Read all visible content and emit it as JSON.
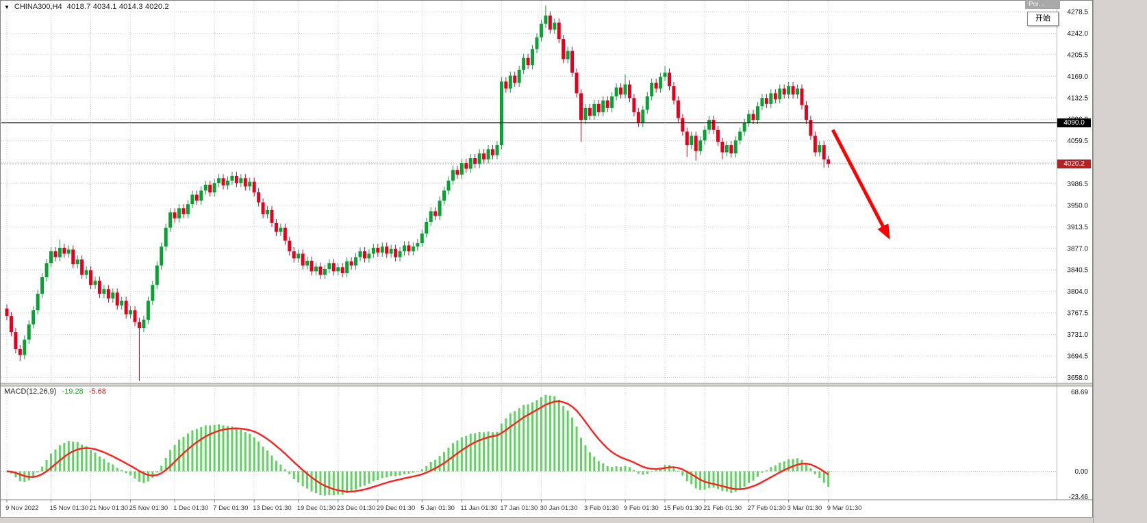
{
  "header": {
    "symbol_timeframe": "CHINA300,H4",
    "ohlc_text": "4018.7 4034.1 4014.3 4020.2"
  },
  "icons": {
    "symbol_dropdown": "▼"
  },
  "overlay": {
    "popup_text": "Poi...",
    "start_button_label": "开始"
  },
  "macd": {
    "label": "MACD(12,26,9)",
    "main_value": "-19.28",
    "signal_value": "-5.68",
    "axis_labels": {
      "max": "68.69",
      "zero": "0.00",
      "min": "-23.46"
    }
  },
  "price_axis": {
    "top_price": 4278.5,
    "step": 36.5,
    "labels": [
      "4278.5",
      "4242.0",
      "4205.5",
      "4169.0",
      "4132.5",
      "4096.0",
      "4059.5",
      "4023.0",
      "3986.5",
      "3950.0",
      "3913.5",
      "3877.0",
      "3840.5",
      "3804.0",
      "3767.5",
      "3731.0",
      "3694.5",
      "3658.0"
    ]
  },
  "time_axis": {
    "ticks": [
      {
        "label": "9 Nov 2022",
        "index": 0
      },
      {
        "label": "15 Nov 01:30",
        "index": 10
      },
      {
        "label": "21 Nov 01:30",
        "index": 19
      },
      {
        "label": "25 Nov 01:30",
        "index": 28
      },
      {
        "label": "1 Dec 01:30",
        "index": 38
      },
      {
        "label": "7 Dec 01:30",
        "index": 47
      },
      {
        "label": "13 Dec 01:30",
        "index": 56
      },
      {
        "label": "19 Dec 01:30",
        "index": 66
      },
      {
        "label": "23 Dec 01:30",
        "index": 75
      },
      {
        "label": "29 Dec 01:30",
        "index": 84
      },
      {
        "label": "5 Jan 01:30",
        "index": 94
      },
      {
        "label": "11 Jan 01:30",
        "index": 103
      },
      {
        "label": "17 Jan 01:30",
        "index": 112
      },
      {
        "label": "30 Jan 01:30",
        "index": 121
      },
      {
        "label": "3 Feb 01:30",
        "index": 131
      },
      {
        "label": "9 Feb 01:30",
        "index": 140
      },
      {
        "label": "15 Feb 01:30",
        "index": 149
      },
      {
        "label": "21 Feb 01:30",
        "index": 158
      },
      {
        "label": "27 Feb 01:30",
        "index": 168
      },
      {
        "label": "3 Mar 01:30",
        "index": 177
      },
      {
        "label": "9 Mar 01:30",
        "index": 186
      }
    ]
  },
  "chart_data": {
    "type": "candlestick",
    "symbol": "CHINA300",
    "timeframe": "H4",
    "current_bar": {
      "open": 4018.7,
      "high": 4034.1,
      "low": 4014.3,
      "close": 4020.2
    },
    "hline_price": 4090.0,
    "hline_label": "4090.0",
    "bid_price": 4020.2,
    "bid_label": "4020.2",
    "open_first": 3775,
    "default_wick": 7,
    "closes": [
      3762,
      3735,
      3706,
      3696,
      3722,
      3748,
      3772,
      3800,
      3828,
      3852,
      3872,
      3862,
      3878,
      3868,
      3875,
      3850,
      3858,
      3832,
      3840,
      3815,
      3822,
      3800,
      3808,
      3792,
      3802,
      3780,
      3788,
      3765,
      3772,
      3752,
      3742,
      3756,
      3788,
      3815,
      3848,
      3880,
      3912,
      3938,
      3928,
      3945,
      3935,
      3952,
      3968,
      3958,
      3975,
      3985,
      3972,
      3988,
      3996,
      3984,
      3992,
      4000,
      3988,
      3996,
      3982,
      3990,
      3972,
      3955,
      3935,
      3942,
      3920,
      3905,
      3912,
      3890,
      3872,
      3860,
      3868,
      3848,
      3856,
      3838,
      3846,
      3832,
      3842,
      3852,
      3838,
      3845,
      3835,
      3855,
      3848,
      3862,
      3872,
      3860,
      3868,
      3878,
      3870,
      3880,
      3868,
      3876,
      3862,
      3872,
      3882,
      3872,
      3880,
      3886,
      3902,
      3922,
      3940,
      3932,
      3958,
      3975,
      3992,
      4010,
      4002,
      4022,
      4012,
      4030,
      4020,
      4038,
      4028,
      4045,
      4035,
      4052,
      4160,
      4148,
      4170,
      4158,
      4180,
      4200,
      4188,
      4215,
      4235,
      4258,
      4272,
      4248,
      4260,
      4232,
      4198,
      4212,
      4175,
      4140,
      4095,
      4115,
      4102,
      4122,
      4108,
      4128,
      4115,
      4135,
      4150,
      4138,
      4155,
      4132,
      4108,
      4090,
      4112,
      4135,
      4158,
      4148,
      4168,
      4175,
      4152,
      4128,
      4098,
      4075,
      4052,
      4068,
      4042,
      4060,
      4078,
      4095,
      4078,
      4058,
      4040,
      4052,
      4038,
      4060,
      4075,
      4090,
      4105,
      4095,
      4118,
      4132,
      4122,
      4140,
      4130,
      4148,
      4138,
      4152,
      4138,
      4148,
      4120,
      4095,
      4068,
      4040,
      4052,
      4028,
      4020.2
    ],
    "wick_overrides": {
      "3": {
        "low": 3686
      },
      "12": {
        "high": 3892
      },
      "30": {
        "low": 3652
      },
      "112": {
        "high": 4168
      },
      "122": {
        "high": 4289
      },
      "130": {
        "low": 4058
      },
      "140": {
        "high": 4172
      },
      "149": {
        "high": 4186
      },
      "154": {
        "low": 4032
      },
      "156": {
        "low": 4026
      },
      "162": {
        "low": 4028
      },
      "185": {
        "low": 4014
      },
      "186": {
        "low": 4014,
        "high": 4034
      }
    },
    "indicator": {
      "type": "macd",
      "fast": 12,
      "slow": 26,
      "signal": 9
    },
    "annotation_arrow": {
      "from": [
        187,
        4078
      ],
      "to": [
        199.5,
        3898
      ],
      "color": "#ff0000"
    }
  },
  "colors": {
    "bull": "#09a134",
    "bear": "#e6001f",
    "grid": "#cccccc",
    "hline": "#000000",
    "macd_hist": "#5fd35f",
    "macd_signal": "#ff1f1f",
    "arrow": "#ff0000",
    "desktop": "#d6d3ce"
  }
}
